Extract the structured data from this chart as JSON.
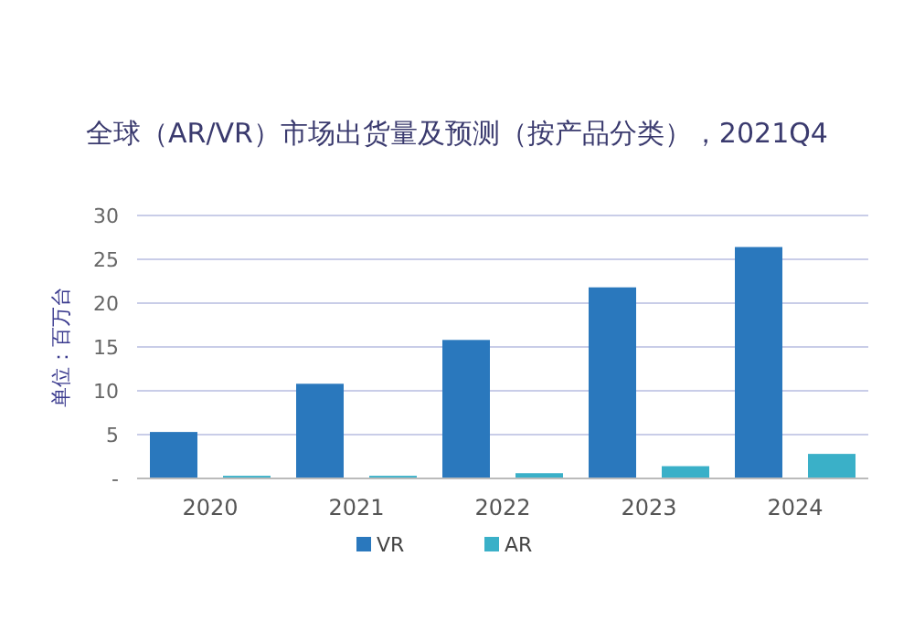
{
  "chart_data": {
    "type": "bar",
    "title": "全球（AR/VR）市场出货量及预测（按产品分类），2021Q4",
    "ylabel": "单位：百万台",
    "categories": [
      "2020",
      "2021",
      "2022",
      "2023",
      "2024"
    ],
    "series": [
      {
        "name": "VR",
        "color": "#2a78bd",
        "values": [
          5.3,
          10.8,
          15.8,
          21.8,
          26.4
        ]
      },
      {
        "name": "AR",
        "color": "#3ab0c8",
        "values": [
          0.3,
          0.3,
          0.6,
          1.4,
          2.8
        ]
      }
    ],
    "ylim": [
      0,
      30
    ],
    "yticks": [
      {
        "value": 0,
        "label": "-"
      },
      5,
      10,
      15,
      20,
      25,
      30
    ],
    "grid": "y",
    "legend": "bottom"
  }
}
